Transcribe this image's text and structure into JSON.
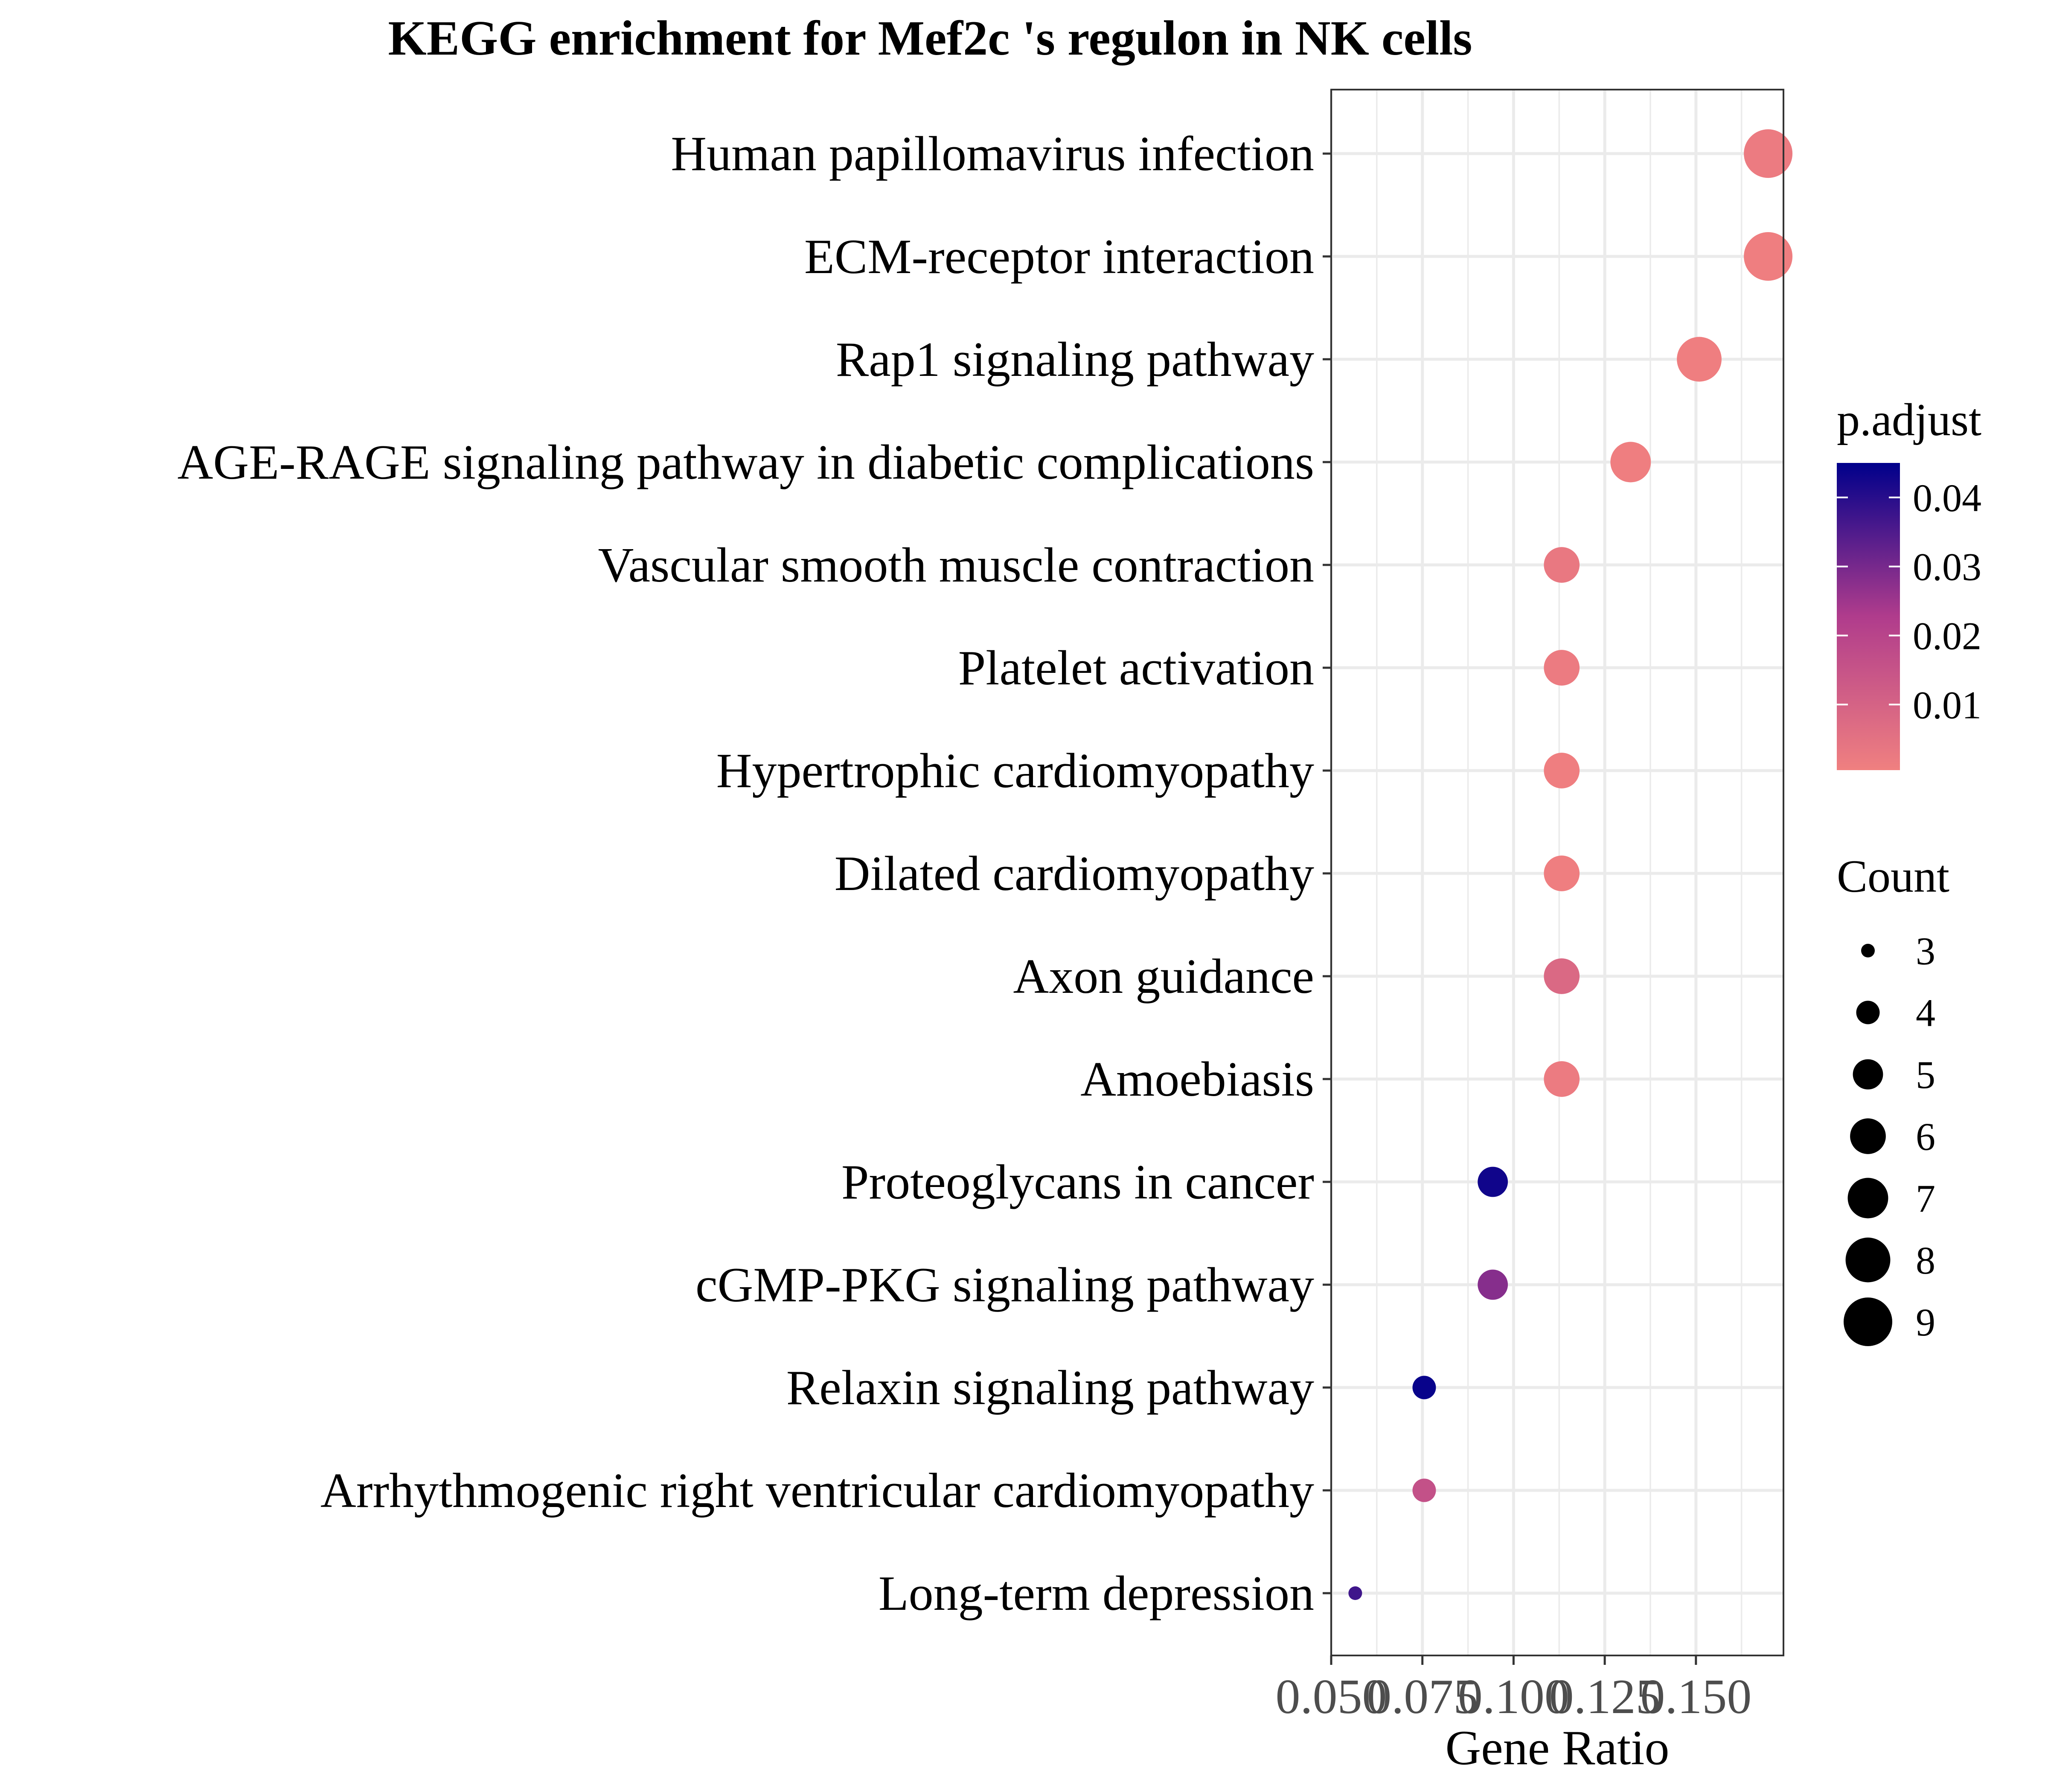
{
  "chart_data": {
    "type": "scatter",
    "title": "KEGG enrichment for Mef2c 's regulon in NK cells",
    "xlabel": "Gene Ratio",
    "ylabel": "",
    "xlim": [
      0.05,
      0.174
    ],
    "x_ticks": [
      0.05,
      0.075,
      0.1,
      0.125,
      0.15
    ],
    "x_tick_labels": [
      "0.050",
      "0.075",
      "0.100",
      "0.125",
      "0.150"
    ],
    "grid": true,
    "categories": [
      "Human papillomavirus infection",
      "ECM-receptor interaction",
      "Rap1 signaling pathway",
      "AGE-RAGE signaling pathway in diabetic complications",
      "Vascular smooth muscle contraction",
      "Platelet activation",
      "Hypertrophic cardiomyopathy",
      "Dilated cardiomyopathy",
      "Axon guidance",
      "Amoebiasis",
      "Proteoglycans in cancer",
      "cGMP-PKG signaling pathway",
      "Relaxin signaling pathway",
      "Arrhythmogenic right ventricular cardiomyopathy",
      "Long-term depression"
    ],
    "points": [
      {
        "term": "Human papillomavirus infection",
        "gene_ratio": 0.1698,
        "count": 9,
        "p_adjust": 0.002
      },
      {
        "term": "ECM-receptor interaction",
        "gene_ratio": 0.1698,
        "count": 9,
        "p_adjust": 0.001
      },
      {
        "term": "Rap1 signaling pathway",
        "gene_ratio": 0.1509,
        "count": 8,
        "p_adjust": 0.001
      },
      {
        "term": "AGE-RAGE signaling pathway in diabetic complications",
        "gene_ratio": 0.1321,
        "count": 7,
        "p_adjust": 0.001
      },
      {
        "term": "Vascular smooth muscle contraction",
        "gene_ratio": 0.1132,
        "count": 6,
        "p_adjust": 0.003
      },
      {
        "term": "Platelet activation",
        "gene_ratio": 0.1132,
        "count": 6,
        "p_adjust": 0.002
      },
      {
        "term": "Hypertrophic cardiomyopathy",
        "gene_ratio": 0.1132,
        "count": 6,
        "p_adjust": 0.001
      },
      {
        "term": "Dilated cardiomyopathy",
        "gene_ratio": 0.1132,
        "count": 6,
        "p_adjust": 0.001
      },
      {
        "term": "Axon guidance",
        "gene_ratio": 0.1132,
        "count": 6,
        "p_adjust": 0.008
      },
      {
        "term": "Amoebiasis",
        "gene_ratio": 0.1132,
        "count": 6,
        "p_adjust": 0.002
      },
      {
        "term": "Proteoglycans in cancer",
        "gene_ratio": 0.0943,
        "count": 5,
        "p_adjust": 0.043
      },
      {
        "term": "cGMP-PKG signaling pathway",
        "gene_ratio": 0.0943,
        "count": 5,
        "p_adjust": 0.028
      },
      {
        "term": "Relaxin signaling pathway",
        "gene_ratio": 0.0755,
        "count": 4,
        "p_adjust": 0.044
      },
      {
        "term": "Arrhythmogenic right ventricular cardiomyopathy",
        "gene_ratio": 0.0755,
        "count": 4,
        "p_adjust": 0.016
      },
      {
        "term": "Long-term depression",
        "gene_ratio": 0.0566,
        "count": 3,
        "p_adjust": 0.037
      }
    ],
    "color_scale": {
      "title": "p.adjust",
      "low_color": "#F08080",
      "mid_color": "#B03C8C",
      "high_color": "#00008B",
      "range": [
        0.0005,
        0.045
      ],
      "ticks": [
        0.04,
        0.03,
        0.02,
        0.01
      ],
      "tick_labels": [
        "0.04",
        "0.03",
        "0.02",
        "0.01"
      ]
    },
    "size_scale": {
      "title": "Count",
      "values": [
        3,
        4,
        5,
        6,
        7,
        8,
        9
      ],
      "labels": [
        "3",
        "4",
        "5",
        "6",
        "7",
        "8",
        "9"
      ],
      "mark_color": "#000000"
    },
    "legend_placement": "right",
    "grid_color": "#EBEBEB",
    "panel_border_color": "#333333"
  }
}
